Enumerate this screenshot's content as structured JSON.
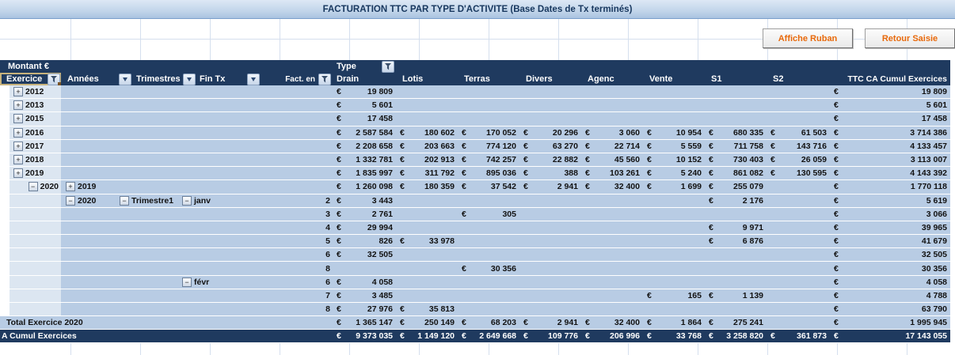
{
  "title": "FACTURATION TTC PAR TYPE D'ACTIVITE (Base Dates de Tx terminés)",
  "buttons": {
    "affiche_ruban": "Affiche Ruban",
    "retour_saisie": "Retour Saisie"
  },
  "colors": {
    "header_navy": "#1f3a5f",
    "row_blue": "#b8cce4",
    "row_light_blue": "#dce6f1",
    "button_text_orange": "#e8690b",
    "title_text_navy": "#17375e",
    "selection_border_tan": "#c7b27c"
  },
  "pivot": {
    "corner_label": "Montant €",
    "type_label": "Type",
    "columns": [
      "Exercice",
      "Années",
      "Trimestres",
      "Fin Tx",
      "Fact. en",
      "Drain",
      "Lotis",
      "Terras",
      "Divers",
      "Agenc",
      "Vente",
      "S1",
      "S2",
      "TTC CA Cumul Exercices"
    ],
    "money_keys": [
      "drain",
      "lotis",
      "terras",
      "divers",
      "agenc",
      "vente",
      "s1",
      "s2",
      "ttc"
    ],
    "rows": [
      {
        "type": "data",
        "exercice": {
          "box": "plus",
          "text": "2012"
        },
        "money": {
          "drain": "19 809",
          "ttc": "19 809"
        }
      },
      {
        "type": "data",
        "exercice": {
          "box": "plus",
          "text": "2013"
        },
        "money": {
          "drain": "5 601",
          "ttc": "5 601"
        }
      },
      {
        "type": "data",
        "exercice": {
          "box": "plus",
          "text": "2015"
        },
        "money": {
          "drain": "17 458",
          "ttc": "17 458"
        }
      },
      {
        "type": "data",
        "exercice": {
          "box": "plus",
          "text": "2016"
        },
        "money": {
          "drain": "2 587 584",
          "lotis": "180 602",
          "terras": "170 052",
          "divers": "20 296",
          "agenc": "3 060",
          "vente": "10 954",
          "s1": "680 335",
          "s2": "61 503",
          "ttc": "3 714 386"
        }
      },
      {
        "type": "data",
        "exercice": {
          "box": "plus",
          "text": "2017"
        },
        "money": {
          "drain": "2 208 658",
          "lotis": "203 663",
          "terras": "774 120",
          "divers": "63 270",
          "agenc": "22 714",
          "vente": "5 559",
          "s1": "711 758",
          "s2": "143 716",
          "ttc": "4 133 457"
        }
      },
      {
        "type": "data",
        "exercice": {
          "box": "plus",
          "text": "2018"
        },
        "money": {
          "drain": "1 332 781",
          "lotis": "202 913",
          "terras": "742 257",
          "divers": "22 882",
          "agenc": "45 560",
          "vente": "10 152",
          "s1": "730 403",
          "s2": "26 059",
          "ttc": "3 113 007"
        }
      },
      {
        "type": "data",
        "exercice": {
          "box": "plus",
          "text": "2019"
        },
        "money": {
          "drain": "1 835 997",
          "lotis": "311 792",
          "terras": "895 036",
          "divers": "388",
          "agenc": "103 261",
          "vente": "5 240",
          "s1": "861 082",
          "s2": "130 595",
          "ttc": "4 143 392"
        }
      },
      {
        "type": "data",
        "exercice": {
          "box": "minus",
          "text": "2020",
          "align": "right"
        },
        "annees": {
          "box": "plus",
          "text": "2019"
        },
        "money": {
          "drain": "1 260 098",
          "lotis": "180 359",
          "terras": "37 542",
          "divers": "2 941",
          "agenc": "32 400",
          "vente": "1 699",
          "s1": "255 079",
          "ttc": "1 770 118"
        }
      },
      {
        "type": "data",
        "annees": {
          "box": "minus",
          "text": "2020"
        },
        "trimestres": {
          "box": "minus",
          "text": "Trimestre1"
        },
        "fin_tx": {
          "box": "minus",
          "text": "janv"
        },
        "fact_en": "2",
        "money": {
          "drain": "3 443",
          "s1": "2 176",
          "ttc": "5 619"
        }
      },
      {
        "type": "data",
        "fact_en": "3",
        "money": {
          "drain": "2 761",
          "terras": "305",
          "ttc": "3 066"
        }
      },
      {
        "type": "data",
        "fact_en": "4",
        "money": {
          "drain": "29 994",
          "s1": "9 971",
          "ttc": "39 965"
        }
      },
      {
        "type": "data",
        "fact_en": "5",
        "money": {
          "drain": "826",
          "lotis": "33 978",
          "s1": "6 876",
          "ttc": "41 679"
        }
      },
      {
        "type": "data",
        "fact_en": "6",
        "money": {
          "drain": "32 505",
          "ttc": "32 505"
        }
      },
      {
        "type": "data",
        "fact_en": "8",
        "money": {
          "terras": "30 356",
          "ttc": "30 356"
        }
      },
      {
        "type": "data",
        "fin_tx": {
          "box": "minus",
          "text": "févr"
        },
        "fact_en": "6",
        "money": {
          "drain": "4 058",
          "ttc": "4 058"
        }
      },
      {
        "type": "data",
        "fact_en": "7",
        "money": {
          "drain": "3 485",
          "vente": "165",
          "s1": "1 139",
          "ttc": "4 788"
        }
      },
      {
        "type": "data",
        "fact_en": "8",
        "money": {
          "drain": "27 976",
          "lotis": "35 813",
          "ttc": "63 790"
        }
      },
      {
        "type": "total",
        "label": "Total Exercice 2020",
        "money": {
          "drain": "1 365 147",
          "lotis": "250 149",
          "terras": "68 203",
          "divers": "2 941",
          "agenc": "32 400",
          "vente": "1 864",
          "s1": "275 241",
          "ttc": "1 995 945"
        }
      },
      {
        "type": "grand",
        "label": "A Cumul Exercices",
        "money": {
          "drain": "9 373 035",
          "lotis": "1 149 120",
          "terras": "2 649 668",
          "divers": "109 776",
          "agenc": "206 996",
          "vente": "33 768",
          "s1": "3 258 820",
          "s2": "361 873",
          "ttc": "17 143 055"
        }
      }
    ]
  }
}
